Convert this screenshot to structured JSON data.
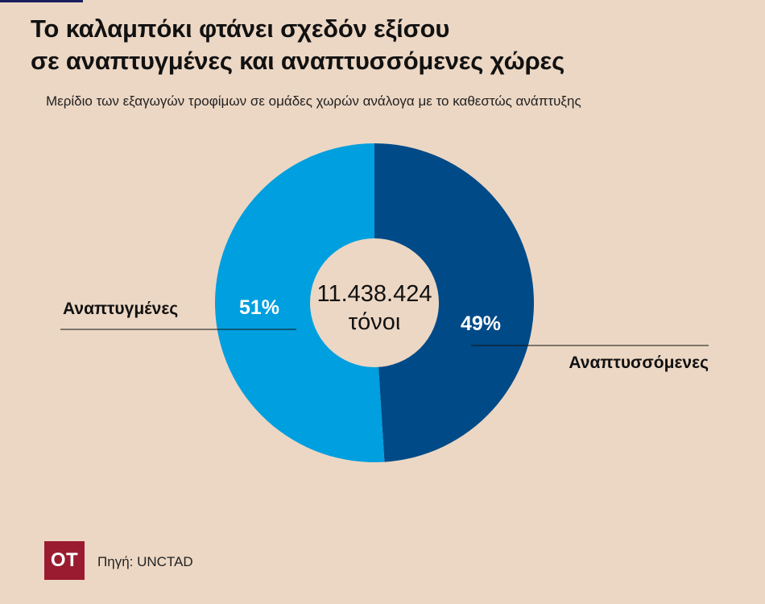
{
  "header": {
    "title_line1": "Το καλαμπόκι φτάνει σχεδόν εξίσου",
    "title_line2": "σε αναπτυγμένες και αναπτυσσόμενες χώρες",
    "subtitle": "Μερίδιο των εξαγωγών τροφίμων σε ομάδες χωρών ανάλογα με το καθεστώς ανάπτυξης"
  },
  "chart_data": {
    "type": "pie",
    "donut": true,
    "center_label": {
      "value": "11.438.424",
      "unit": "τόνοι"
    },
    "slices": [
      {
        "name": "Αναπτυσσόμενες",
        "value": 49,
        "label": "49%",
        "color": "#004a87"
      },
      {
        "name": "Αναπτυγμένες",
        "value": 51,
        "label": "51%",
        "color": "#009fdf"
      }
    ]
  },
  "footer": {
    "logo_text": "OT",
    "logo_color": "#9a1b30",
    "source": "Πηγή: UNCTAD"
  }
}
